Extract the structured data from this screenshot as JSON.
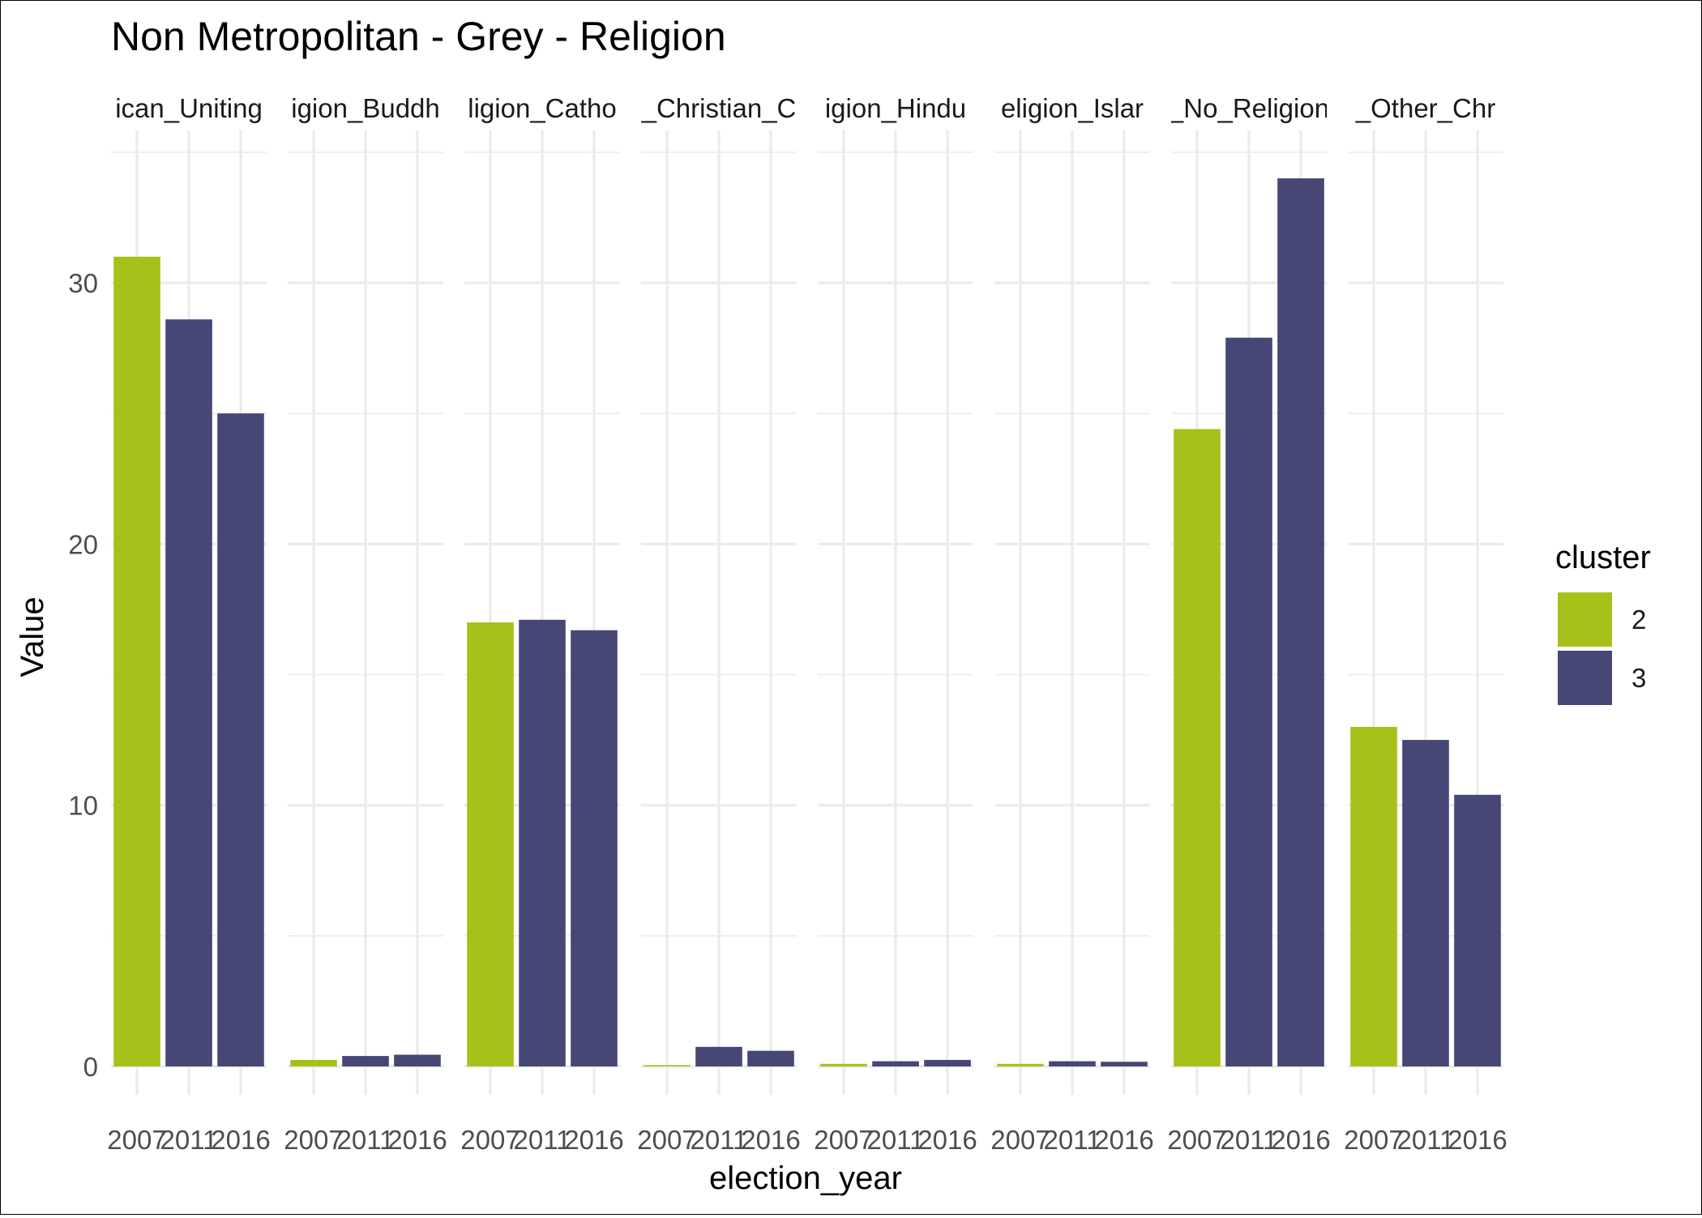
{
  "chart_data": {
    "type": "bar",
    "title": "Non Metropolitan - Grey - Religion",
    "xlabel": "election_year",
    "ylabel": "Value",
    "ylim": [
      0,
      35.6
    ],
    "y_ticks": [
      0,
      10,
      20,
      30
    ],
    "grid": true,
    "legend": {
      "title": "cluster",
      "position": "right",
      "items": [
        {
          "label": "2",
          "color": "#A8C01A"
        },
        {
          "label": "3",
          "color": "#464775"
        }
      ]
    },
    "facets": [
      {
        "label": "Religion_Anglican_Uniting",
        "strip_text": "ican_Uniting",
        "bars": [
          {
            "year": "2007",
            "cluster": "2",
            "value": 31.0
          },
          {
            "year": "2011",
            "cluster": "3",
            "value": 28.6
          },
          {
            "year": "2016",
            "cluster": "3",
            "value": 25.0
          }
        ]
      },
      {
        "label": "Religion_Buddhism",
        "strip_text": "igion_Buddh",
        "bars": [
          {
            "year": "2007",
            "cluster": "2",
            "value": 0.25
          },
          {
            "year": "2011",
            "cluster": "3",
            "value": 0.4
          },
          {
            "year": "2016",
            "cluster": "3",
            "value": 0.45
          }
        ]
      },
      {
        "label": "Religion_Catholic",
        "strip_text": "ligion_Catho",
        "bars": [
          {
            "year": "2007",
            "cluster": "2",
            "value": 17.0
          },
          {
            "year": "2011",
            "cluster": "3",
            "value": 17.1
          },
          {
            "year": "2016",
            "cluster": "3",
            "value": 16.7
          }
        ]
      },
      {
        "label": "Religion_Christian_Other",
        "strip_text": "_Christian_C",
        "bars": [
          {
            "year": "2007",
            "cluster": "2",
            "value": 0.05
          },
          {
            "year": "2011",
            "cluster": "3",
            "value": 0.75
          },
          {
            "year": "2016",
            "cluster": "3",
            "value": 0.6
          }
        ]
      },
      {
        "label": "Religion_Hinduism",
        "strip_text": "igion_Hindu",
        "bars": [
          {
            "year": "2007",
            "cluster": "2",
            "value": 0.1
          },
          {
            "year": "2011",
            "cluster": "3",
            "value": 0.2
          },
          {
            "year": "2016",
            "cluster": "3",
            "value": 0.25
          }
        ]
      },
      {
        "label": "Religion_Islam",
        "strip_text": "eligion_Islar",
        "bars": [
          {
            "year": "2007",
            "cluster": "2",
            "value": 0.1
          },
          {
            "year": "2011",
            "cluster": "3",
            "value": 0.2
          },
          {
            "year": "2016",
            "cluster": "3",
            "value": 0.18
          }
        ]
      },
      {
        "label": "Religion_No_Religion",
        "strip_text": "_No_Religion",
        "bars": [
          {
            "year": "2007",
            "cluster": "2",
            "value": 24.4
          },
          {
            "year": "2011",
            "cluster": "3",
            "value": 27.9
          },
          {
            "year": "2016",
            "cluster": "3",
            "value": 34.0
          }
        ]
      },
      {
        "label": "Religion_Other_Christian",
        "strip_text": "_Other_Chr",
        "bars": [
          {
            "year": "2007",
            "cluster": "2",
            "value": 13.0
          },
          {
            "year": "2011",
            "cluster": "3",
            "value": 12.5
          },
          {
            "year": "2016",
            "cluster": "3",
            "value": 10.4
          }
        ]
      }
    ]
  }
}
